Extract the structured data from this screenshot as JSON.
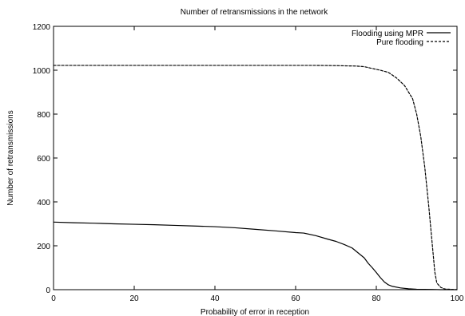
{
  "chart_data": {
    "type": "line",
    "title": "Number of retransmissions in the network",
    "xlabel": "Probability of error in reception",
    "ylabel": "Number of retransmissions",
    "xlim": [
      0,
      100
    ],
    "ylim": [
      0,
      1200
    ],
    "x_ticks": [
      0,
      20,
      40,
      60,
      80,
      100
    ],
    "y_ticks": [
      0,
      200,
      400,
      600,
      800,
      1000,
      1200
    ],
    "legend_position": "top-right",
    "grid": false,
    "series": [
      {
        "name": "Flooding using MPR",
        "line_style": "solid",
        "color": "#000000",
        "points": [
          [
            0,
            308
          ],
          [
            5,
            305
          ],
          [
            10,
            303
          ],
          [
            15,
            300
          ],
          [
            20,
            298
          ],
          [
            25,
            296
          ],
          [
            30,
            293
          ],
          [
            35,
            290
          ],
          [
            40,
            287
          ],
          [
            45,
            282
          ],
          [
            50,
            275
          ],
          [
            55,
            268
          ],
          [
            60,
            260
          ],
          [
            62,
            258
          ],
          [
            65,
            246
          ],
          [
            68,
            230
          ],
          [
            70,
            220
          ],
          [
            72,
            206
          ],
          [
            74,
            190
          ],
          [
            76,
            160
          ],
          [
            77,
            145
          ],
          [
            78,
            120
          ],
          [
            79,
            100
          ],
          [
            80,
            78
          ],
          [
            81,
            55
          ],
          [
            82,
            35
          ],
          [
            83,
            22
          ],
          [
            84,
            15
          ],
          [
            86,
            8
          ],
          [
            88,
            4
          ],
          [
            90,
            2
          ],
          [
            94,
            1
          ],
          [
            96,
            0
          ],
          [
            100,
            0
          ]
        ]
      },
      {
        "name": "Pure flooding",
        "line_style": "dashed",
        "color": "#000000",
        "points": [
          [
            0,
            1022
          ],
          [
            10,
            1022
          ],
          [
            20,
            1022
          ],
          [
            30,
            1022
          ],
          [
            40,
            1022
          ],
          [
            50,
            1022
          ],
          [
            60,
            1022
          ],
          [
            65,
            1022
          ],
          [
            70,
            1021
          ],
          [
            75,
            1019
          ],
          [
            77,
            1016
          ],
          [
            79,
            1008
          ],
          [
            81,
            1000
          ],
          [
            83,
            990
          ],
          [
            85,
            965
          ],
          [
            87,
            930
          ],
          [
            88,
            900
          ],
          [
            89,
            870
          ],
          [
            90,
            800
          ],
          [
            91,
            700
          ],
          [
            92,
            560
          ],
          [
            93,
            380
          ],
          [
            94,
            180
          ],
          [
            94.5,
            80
          ],
          [
            95,
            30
          ],
          [
            96,
            10
          ],
          [
            97,
            3
          ],
          [
            100,
            0
          ]
        ]
      }
    ]
  }
}
